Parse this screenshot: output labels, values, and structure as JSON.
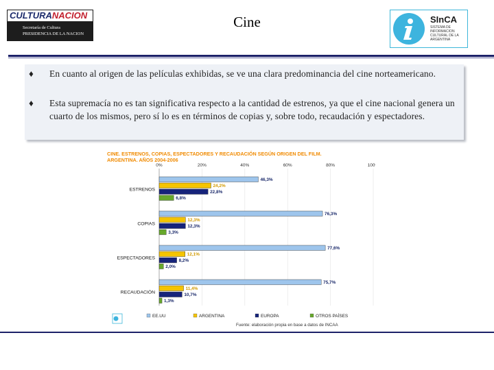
{
  "header": {
    "title": "Cine",
    "logo_left": {
      "top_a": "CULTURA",
      "top_b": "NACION",
      "line1": "Secretaría de Cultura",
      "line2": "PRESIDENCIA DE LA NACION"
    },
    "logo_right": {
      "brand": "SInCA",
      "sub": "SISTEMA DE INFORMACION CULTURAL DE LA ARGENTINA",
      "icon": "info-i-icon"
    }
  },
  "bullets": [
    {
      "marker": "♦",
      "text": "En cuanto al origen de las películas exhibidas, se ve una clara predominancia del cine norteamericano."
    },
    {
      "marker": "♦",
      "text": "Esta supremacía no es tan significativa respecto a la cantidad de estrenos, ya que el cine nacional genera un cuarto de los mismos, pero sí lo es en términos de copias y, sobre todo, recaudación y espectadores."
    }
  ],
  "chart_data": {
    "type": "bar",
    "orientation": "horizontal",
    "title": "CINE. ESTRENOS, COPIAS, ESPECTADORES Y RECAUDACIÓN SEGÚN ORIGEN DEL FILM. ARGENTINA. AÑOS 2004-2006",
    "categories": [
      "ESTRENOS",
      "COPIAS",
      "ESPECTADORES",
      "RECAUDACIÓN"
    ],
    "xlim": [
      0,
      100
    ],
    "ticks": [
      "0%",
      "20%",
      "40%",
      "60%",
      "80%",
      "100%"
    ],
    "series": [
      {
        "name": "EE.UU",
        "color": "#9ec5ec",
        "values": [
          46.3,
          76.3,
          77.6,
          75.7
        ]
      },
      {
        "name": "ARGENTINA",
        "color": "#f5c400",
        "values": [
          24.2,
          12.3,
          12.1,
          11.4
        ]
      },
      {
        "name": "EUROPA",
        "color": "#16237a",
        "values": [
          22.8,
          12.3,
          8.2,
          10.7
        ]
      },
      {
        "name": "OTROS PAÍSES",
        "color": "#67a82c",
        "values": [
          6.8,
          3.3,
          2.0,
          1.3
        ]
      }
    ],
    "labels": [
      [
        "46,3%",
        "24,2%",
        "22,8%",
        "6,8%"
      ],
      [
        "76,3%",
        "12,3%",
        "12,3%",
        "3,3%"
      ],
      [
        "77,6%",
        "12,1%",
        "8,2%",
        "2,0%"
      ],
      [
        "75,7%",
        "11,4%",
        "10,7%",
        "1,3%"
      ]
    ],
    "legend": [
      "EE.UU",
      "ARGENTINA",
      "EUROPA",
      "OTROS PAÍSES"
    ],
    "source": "Fuente: elaboración propia en base a datos de INCAA",
    "title_color": "#f08a00"
  }
}
